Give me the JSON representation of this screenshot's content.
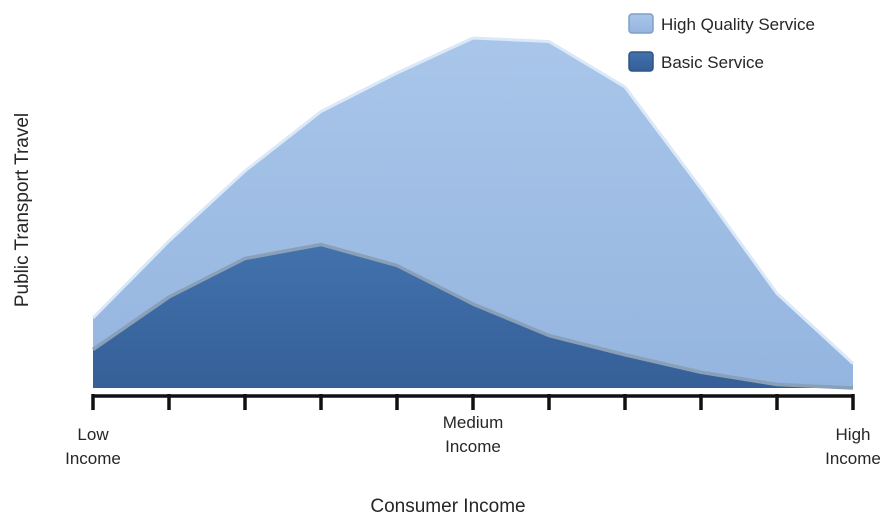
{
  "chart_data": {
    "type": "area",
    "title": "",
    "xlabel": "Consumer Income",
    "ylabel": "Public Transport Travel",
    "grid": false,
    "legend_position": "top-right",
    "x": [
      0,
      1,
      2,
      3,
      4,
      5,
      6,
      7,
      8,
      9,
      10
    ],
    "x_tick_labels": [
      {
        "x": 0,
        "lines": [
          "Low",
          "Income"
        ]
      },
      {
        "x": 5,
        "lines": [
          "Medium",
          "Income"
        ]
      },
      {
        "x": 10,
        "lines": [
          "High",
          "Income"
        ]
      }
    ],
    "xlim": [
      0,
      10
    ],
    "ylim": [
      0,
      100
    ],
    "series": [
      {
        "name": "High Quality Service",
        "color": "#9dbde5",
        "values": [
          20,
          42,
          62,
          79,
          90,
          100,
          99,
          86,
          57,
          27,
          7
        ]
      },
      {
        "name": "Basic Service",
        "color": "#3b67a0",
        "values": [
          11,
          26,
          37,
          41,
          35,
          24,
          15,
          9.5,
          4.5,
          1,
          0
        ]
      }
    ]
  }
}
